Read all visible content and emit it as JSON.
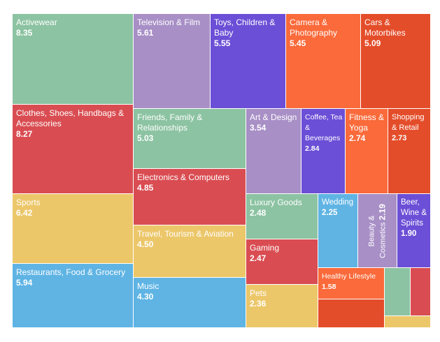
{
  "colors": {
    "green": "#8cc3a2",
    "purple": "#a88fc6",
    "violet": "#6b4fd6",
    "orange": "#fa6a3a",
    "red_orange": "#e44d2a",
    "red": "#d94d52",
    "yellow": "#ecc76a",
    "blue": "#5fb4e4"
  },
  "chart_data": {
    "type": "treemap",
    "items": [
      {
        "label": "Activewear",
        "value": 8.35,
        "value_text": "8.35",
        "color": "#8cc3a2"
      },
      {
        "label": "Clothes, Shoes, Handbags & Accessories",
        "value": 8.27,
        "value_text": "8.27",
        "color": "#d94d52"
      },
      {
        "label": "Sports",
        "value": 6.42,
        "value_text": "6.42",
        "color": "#ecc76a"
      },
      {
        "label": "Restaurants, Food & Grocery",
        "value": 5.94,
        "value_text": "5.94",
        "color": "#5fb4e4"
      },
      {
        "label": "Television & Film",
        "value": 5.61,
        "value_text": "5.61",
        "color": "#a88fc6"
      },
      {
        "label": "Toys, Children & Baby",
        "value": 5.55,
        "value_text": "5.55",
        "color": "#6b4fd6"
      },
      {
        "label": "Camera & Photography",
        "value": 5.45,
        "value_text": "5.45",
        "color": "#fa6a3a"
      },
      {
        "label": "Cars & Motorbikes",
        "value": 5.09,
        "value_text": "5.09",
        "color": "#e44d2a"
      },
      {
        "label": "Friends, Family & Relationships",
        "value": 5.03,
        "value_text": "5.03",
        "color": "#8cc3a2"
      },
      {
        "label": "Electronics & Computers",
        "value": 4.85,
        "value_text": "4.85",
        "color": "#d94d52"
      },
      {
        "label": "Travel, Tourism & Aviation",
        "value": 4.5,
        "value_text": "4.50",
        "color": "#ecc76a"
      },
      {
        "label": "Music",
        "value": 4.3,
        "value_text": "4.30",
        "color": "#5fb4e4"
      },
      {
        "label": "Art & Design",
        "value": 3.54,
        "value_text": "3.54",
        "color": "#a88fc6"
      },
      {
        "label": "Coffee, Tea & Beverages",
        "value": 2.84,
        "value_text": "2.84",
        "color": "#6b4fd6"
      },
      {
        "label": "Fitness & Yoga",
        "value": 2.74,
        "value_text": "2.74",
        "color": "#fa6a3a"
      },
      {
        "label": "Shopping & Retail",
        "value": 2.73,
        "value_text": "2.73",
        "color": "#e44d2a"
      },
      {
        "label": "Luxury Goods",
        "value": 2.48,
        "value_text": "2.48",
        "color": "#8cc3a2"
      },
      {
        "label": "Gaming",
        "value": 2.47,
        "value_text": "2.47",
        "color": "#d94d52"
      },
      {
        "label": "Pets",
        "value": 2.36,
        "value_text": "2.36",
        "color": "#ecc76a"
      },
      {
        "label": "Wedding",
        "value": 2.25,
        "value_text": "2.25",
        "color": "#5fb4e4"
      },
      {
        "label": "Beauty & Cosmetics",
        "value": 2.19,
        "value_text": "2.19",
        "color": "#a88fc6"
      },
      {
        "label": "Beer, Wine & Spirits",
        "value": 1.9,
        "value_text": "1.90",
        "color": "#6b4fd6"
      },
      {
        "label": "Healthy Lifestyle",
        "value": 1.58,
        "value_text": "1.58",
        "color": "#fa6a3a"
      },
      {
        "label": "",
        "value": null,
        "value_text": "",
        "color": "#e44d2a"
      },
      {
        "label": "",
        "value": null,
        "value_text": "",
        "color": "#8cc3a2"
      },
      {
        "label": "",
        "value": null,
        "value_text": "",
        "color": "#d94d52"
      },
      {
        "label": "",
        "value": null,
        "value_text": "",
        "color": "#ecc76a"
      }
    ]
  }
}
